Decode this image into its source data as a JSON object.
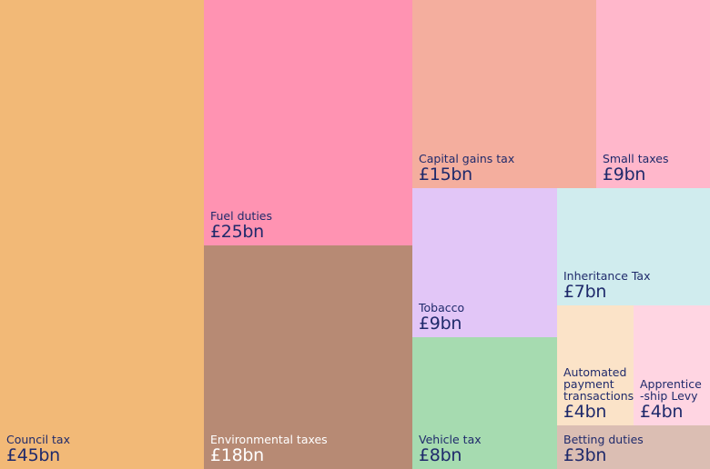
{
  "chart_data": {
    "type": "treemap",
    "items": [
      {
        "name": "Council tax",
        "value": 45,
        "label": "£45bn",
        "color": "#f2b977",
        "text": "dark"
      },
      {
        "name": "Fuel duties",
        "value": 25,
        "label": "£25bn",
        "color": "#ff93b2",
        "text": "dark"
      },
      {
        "name": "Environmental taxes",
        "value": 18,
        "label": "£18bn",
        "color": "#b78a74",
        "text": "light"
      },
      {
        "name": "Capital gains tax",
        "value": 15,
        "label": "£15bn",
        "color": "#f4ae9e",
        "text": "dark"
      },
      {
        "name": "Small taxes",
        "value": 9,
        "label": "£9bn",
        "color": "#ffb7cb",
        "text": "dark"
      },
      {
        "name": "Tobacco",
        "value": 9,
        "label": "£9bn",
        "color": "#e2c6f7",
        "text": "dark"
      },
      {
        "name": "Inheritance Tax",
        "value": 7,
        "label": "£7bn",
        "color": "#d0ecee",
        "text": "dark"
      },
      {
        "name": "Vehicle tax",
        "value": 8,
        "label": "£8bn",
        "color": "#a6dbb0",
        "text": "dark"
      },
      {
        "name": "Automated payment transactions",
        "value": 4,
        "label": "£4bn",
        "color": "#fbe3c8",
        "text": "dark"
      },
      {
        "name": "Apprentice -ship Levy",
        "value": 4,
        "label": "£4bn",
        "color": "#ffd5e2",
        "text": "dark"
      },
      {
        "name": "Betting duties",
        "value": 3,
        "label": "£3bn",
        "color": "#dbbeb3",
        "text": "dark"
      }
    ]
  }
}
